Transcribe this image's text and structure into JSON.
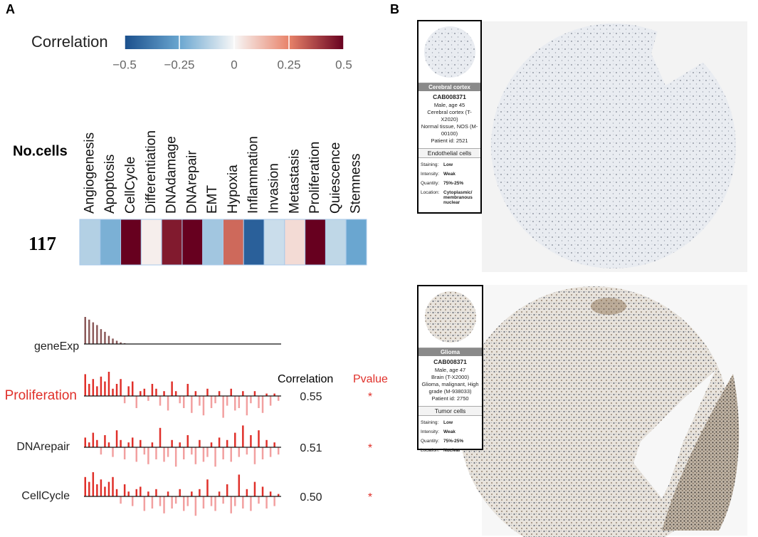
{
  "panel_a": {
    "label": "A",
    "colorbar": {
      "title": "Correlation",
      "lim": [
        -0.5,
        0.5
      ],
      "colors": [
        "#1a4f8c",
        "#6aa6d0",
        "#f7f7f7",
        "#e8836a",
        "#67001f"
      ],
      "ticks": [
        {
          "value": -0.5,
          "label": "−0.5"
        },
        {
          "value": -0.25,
          "label": "−0.25"
        },
        0,
        0.25,
        0.5
      ]
    },
    "row_title": "No.cells",
    "row_label": "117",
    "states": [
      "Angiogenesis",
      "Apoptosis",
      "CellCycle",
      "Differentiation",
      "DNAdamage",
      "DNArepair",
      "EMT",
      "Hypoxia",
      "Inflammation",
      "Invasion",
      "Metastasis",
      "Proliferation",
      "Quiescence",
      "Stemness"
    ],
    "values": [
      -0.12,
      -0.22,
      0.5,
      0.02,
      0.45,
      0.5,
      -0.15,
      0.3,
      -0.45,
      -0.08,
      0.06,
      0.5,
      -0.1,
      -0.25
    ],
    "correlation_header": "Correlation",
    "pvalue_header": "Pvalue",
    "gene": {
      "name": "geneExp",
      "color": "#8b5a5a",
      "values": [
        1,
        0.9,
        0.8,
        0.7,
        0.55,
        0.45,
        0.3,
        0.2,
        0.12,
        0.06,
        0.03,
        0,
        0,
        0,
        0,
        0,
        0,
        0,
        0,
        0,
        0,
        0,
        0,
        0,
        0,
        0,
        0,
        0,
        0,
        0,
        0,
        0,
        0,
        0,
        0,
        0,
        0,
        0,
        0,
        0,
        0,
        0,
        0,
        0,
        0,
        0,
        0,
        0,
        0,
        0
      ]
    },
    "rows": [
      {
        "name": "Proliferation",
        "correlation": 0.55,
        "pvalue": "*",
        "values": [
          0.9,
          0.5,
          0.7,
          0.4,
          0.8,
          0.6,
          1,
          0.3,
          0.5,
          0.7,
          -0.3,
          0.4,
          0.6,
          -0.5,
          0.2,
          0.3,
          -0.2,
          0.5,
          0.3,
          -0.4,
          0.2,
          -0.6,
          0.6,
          0.2,
          -0.3,
          -0.5,
          0.5,
          -0.7,
          0.2,
          -0.4,
          -0.8,
          0.3,
          -0.5,
          -0.3,
          0.2,
          -0.9,
          -0.4,
          0.3,
          -0.6,
          -0.5,
          0.2,
          -0.8,
          -0.3,
          0.2,
          -0.5,
          -0.7,
          0.1,
          -0.4,
          0.1,
          -0.2
        ]
      },
      {
        "name": "DNArepair",
        "correlation": 0.51,
        "pvalue": "*",
        "values": [
          0.4,
          0.2,
          0.6,
          0.3,
          -0.3,
          0.5,
          0.2,
          -0.4,
          0.7,
          0.3,
          -0.5,
          0.2,
          0.4,
          -0.6,
          0.3,
          -0.3,
          -0.7,
          0.2,
          -0.5,
          0.8,
          -0.6,
          -0.4,
          0.3,
          -0.8,
          0.2,
          -0.5,
          0.5,
          -0.3,
          -0.7,
          0.3,
          -0.6,
          -0.4,
          0.2,
          -0.8,
          0.4,
          -0.5,
          0.3,
          -0.6,
          0.6,
          -0.4,
          0.9,
          -0.3,
          0.5,
          -0.7,
          0.7,
          -0.5,
          0.3,
          -0.4,
          0.2,
          -0.3
        ]
      },
      {
        "name": "CellCycle",
        "correlation": {
          "value": 0.5,
          "label": "0.50"
        },
        "pvalue": "*",
        "values": [
          0.8,
          0.6,
          1,
          0.5,
          0.7,
          0.4,
          0.6,
          0.8,
          0.3,
          -0.3,
          0.5,
          0.2,
          -0.4,
          0.3,
          0.4,
          -0.6,
          0.2,
          -0.5,
          0.3,
          -0.4,
          -0.7,
          0.2,
          -0.5,
          -0.3,
          0.3,
          -0.6,
          -0.4,
          0.2,
          -0.8,
          0.3,
          -0.5,
          0.7,
          -0.4,
          -0.6,
          0.2,
          -0.3,
          0.5,
          -0.7,
          -0.4,
          0.9,
          -0.5,
          0.3,
          -0.6,
          0.6,
          -0.3,
          0.4,
          -0.5,
          0.2,
          -0.4,
          0.1
        ]
      }
    ],
    "bar_lim": [
      -1,
      1
    ],
    "up_color": "#e0302a",
    "down_color": "#f2a0a0"
  },
  "panel_b": {
    "label": "B",
    "cards": [
      {
        "header": "Cerebral cortex",
        "code": "CAB008371",
        "lines": [
          "Male, age 45",
          "Cerebral cortex (T-X2020)",
          "Normal tissue, NOS (M-00100)",
          "Patient id: 2521"
        ],
        "cell_type": "Endothelial cells",
        "details": [
          {
            "key": "Staining:",
            "value": "Low"
          },
          {
            "key": "Intensity:",
            "value": "Weak"
          },
          {
            "key": "Quantity:",
            "value": "75%-25%"
          },
          {
            "key": "Location:",
            "value": "Cytoplasmic/ membranous nuclear"
          }
        ]
      },
      {
        "header": "Glioma",
        "code": "CAB008371",
        "lines": [
          "Male, age 47",
          "Brain (T-X2000)",
          "Glioma, malignant, High grade (M-938033)",
          "Patient id: 2750"
        ],
        "cell_type": "Tumor cells",
        "details": [
          {
            "key": "Staining:",
            "value": "Low"
          },
          {
            "key": "Intensity:",
            "value": "Weak"
          },
          {
            "key": "Quantity:",
            "value": "75%-25%"
          },
          {
            "key": "Location:",
            "value": "Nuclear"
          }
        ]
      }
    ]
  }
}
